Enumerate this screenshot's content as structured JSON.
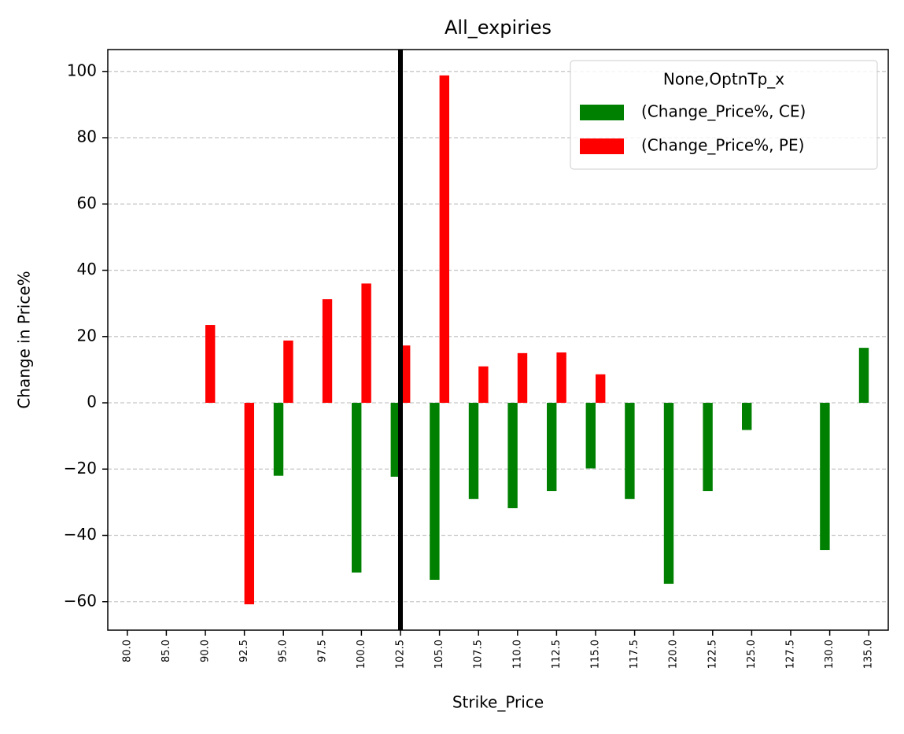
{
  "chart_data": {
    "type": "bar",
    "title": "All_expiries",
    "x_label": "Strike_Price",
    "y_label": "Change in Price%",
    "categories": [
      "80.0",
      "85.0",
      "90.0",
      "92.5",
      "95.0",
      "97.5",
      "100.0",
      "102.5",
      "105.0",
      "107.5",
      "110.0",
      "112.5",
      "115.0",
      "117.5",
      "120.0",
      "122.5",
      "125.0",
      "127.5",
      "130.0",
      "135.0"
    ],
    "series": [
      {
        "name": "(Change_Price%, CE)",
        "color": "#008000",
        "values": [
          null,
          null,
          null,
          null,
          -22,
          null,
          -51.2,
          -22.3,
          -53.4,
          -29,
          -31.8,
          -26.6,
          -19.8,
          -29,
          -54.6,
          -26.6,
          -8.2,
          null,
          -44.4,
          16.6
        ]
      },
      {
        "name": "(Change_Price%, PE)",
        "color": "#ff0000",
        "values": [
          null,
          null,
          23.5,
          -60.8,
          18.8,
          31.3,
          36,
          17.3,
          98.8,
          11,
          15,
          15.2,
          8.6,
          null,
          null,
          null,
          null,
          null,
          null,
          null
        ]
      }
    ],
    "legend_title": "None,OptnTp_x",
    "legend": "upper right",
    "ylim": [
      -68.6,
      106.6
    ],
    "yticks": [
      {
        "value": -60,
        "label": "−60"
      },
      {
        "value": -40,
        "label": "−40"
      },
      {
        "value": -20,
        "label": "−20"
      },
      0,
      20,
      40,
      60,
      80,
      100
    ],
    "grid": true,
    "vline": "102.5"
  }
}
